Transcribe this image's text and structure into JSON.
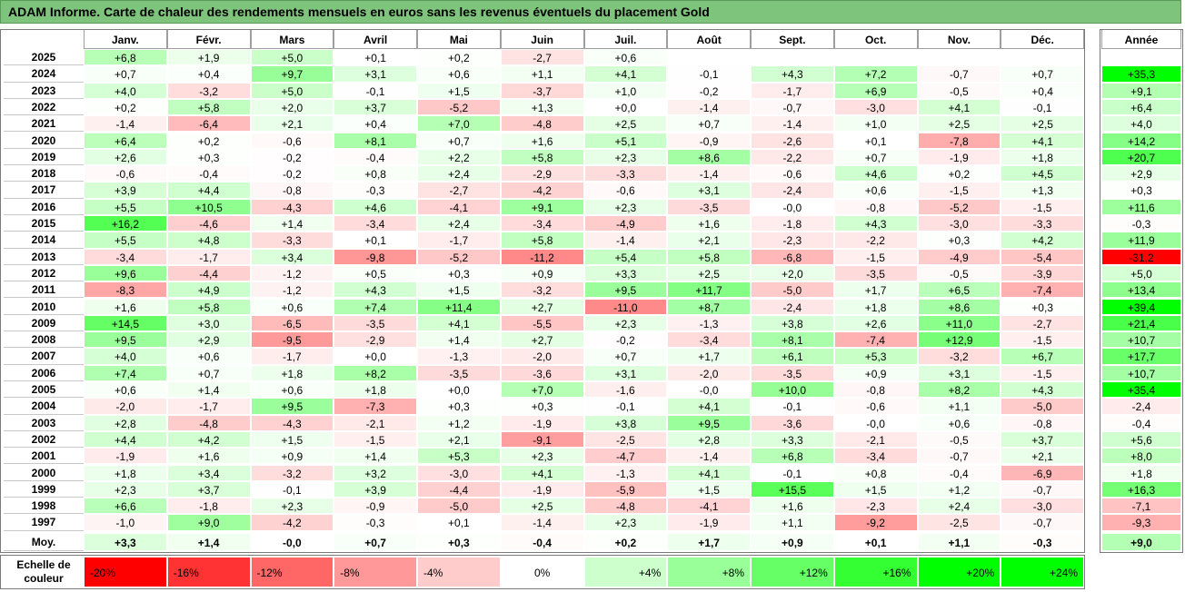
{
  "title": "ADAM Informe. Carte de chaleur des rendements mensuels en euros sans les revenus éventuels du placement Gold",
  "chart_data": {
    "type": "heatmap",
    "title": "ADAM Informe. Carte de chaleur des rendements mensuels en euros sans les revenus éventuels du placement Gold",
    "months": [
      "Janv.",
      "Févr.",
      "Mars",
      "Avril",
      "Mai",
      "Juin",
      "Juil.",
      "Août",
      "Sept.",
      "Oct.",
      "Nov.",
      "Déc."
    ],
    "year_header": "Année",
    "rows": [
      {
        "year": "2025",
        "values": [
          "+6,8",
          "+1,9",
          "+5,0",
          "+0,1",
          "+0,2",
          "-2,7",
          "+0,6",
          "",
          "",
          "",
          "",
          ""
        ],
        "annual": ""
      },
      {
        "year": "2024",
        "values": [
          "+0,7",
          "+0,4",
          "+9,7",
          "+3,1",
          "+0,6",
          "+1,1",
          "+4,1",
          "-0,1",
          "+4,3",
          "+7,2",
          "-0,7",
          "+0,7"
        ],
        "annual": "+35,3"
      },
      {
        "year": "2023",
        "values": [
          "+4,0",
          "-3,2",
          "+5,0",
          "-0,1",
          "+1,5",
          "-3,7",
          "+1,0",
          "-0,2",
          "-1,7",
          "+6,9",
          "-0,5",
          "+0,4"
        ],
        "annual": "+9,1"
      },
      {
        "year": "2022",
        "values": [
          "+0,2",
          "+5,8",
          "+2,0",
          "+3,7",
          "-5,2",
          "+1,3",
          "+0,0",
          "-1,4",
          "-0,7",
          "-3,0",
          "+4,1",
          "-0,1"
        ],
        "annual": "+6,4"
      },
      {
        "year": "2021",
        "values": [
          "-1,4",
          "-6,4",
          "+2,1",
          "+0,4",
          "+7,0",
          "-4,8",
          "+2,5",
          "+0,7",
          "-1,4",
          "+1,0",
          "+2,5",
          "+2,5"
        ],
        "annual": "+4,0"
      },
      {
        "year": "2020",
        "values": [
          "+6,4",
          "+0,2",
          "-0,6",
          "+8,1",
          "+0,7",
          "+1,6",
          "+5,1",
          "-0,9",
          "-2,6",
          "+0,1",
          "-7,8",
          "+4,1"
        ],
        "annual": "+14,2"
      },
      {
        "year": "2019",
        "values": [
          "+2,6",
          "+0,3",
          "-0,2",
          "-0,4",
          "+2,2",
          "+5,8",
          "+2,3",
          "+8,6",
          "-2,2",
          "+0,7",
          "-1,9",
          "+1,8"
        ],
        "annual": "+20,7"
      },
      {
        "year": "2018",
        "values": [
          "-0,6",
          "-0,4",
          "-0,2",
          "+0,8",
          "+2,4",
          "-2,9",
          "-3,3",
          "-1,4",
          "-0,6",
          "+4,6",
          "+0,2",
          "+4,5"
        ],
        "annual": "+2,9"
      },
      {
        "year": "2017",
        "values": [
          "+3,9",
          "+4,4",
          "-0,8",
          "-0,3",
          "-2,7",
          "-4,2",
          "-0,6",
          "+3,1",
          "-2,4",
          "+0,6",
          "-1,5",
          "+1,3"
        ],
        "annual": "+0,3"
      },
      {
        "year": "2016",
        "values": [
          "+5,5",
          "+10,5",
          "-4,3",
          "+4,6",
          "-4,1",
          "+9,1",
          "+2,3",
          "-3,5",
          "-0,0",
          "-0,8",
          "-5,2",
          "-1,5"
        ],
        "annual": "+11,6"
      },
      {
        "year": "2015",
        "values": [
          "+16,2",
          "-4,6",
          "+1,4",
          "-3,4",
          "+2,4",
          "-3,4",
          "-4,9",
          "+1,6",
          "-1,8",
          "+4,3",
          "-3,0",
          "-3,3"
        ],
        "annual": "-0,3"
      },
      {
        "year": "2014",
        "values": [
          "+5,5",
          "+4,8",
          "-3,3",
          "+0,1",
          "-1,7",
          "+5,8",
          "-1,4",
          "+2,1",
          "-2,3",
          "-2,2",
          "+0,3",
          "+4,2"
        ],
        "annual": "+11,9"
      },
      {
        "year": "2013",
        "values": [
          "-3,4",
          "-1,7",
          "+3,4",
          "-9,8",
          "-5,2",
          "-11,2",
          "+5,4",
          "+5,8",
          "-6,8",
          "-1,5",
          "-4,9",
          "-5,4"
        ],
        "annual": "-31,2"
      },
      {
        "year": "2012",
        "values": [
          "+9,6",
          "-4,4",
          "-1,2",
          "+0,5",
          "+0,3",
          "+0,9",
          "+3,3",
          "+2,5",
          "+2,0",
          "-3,5",
          "-0,5",
          "-3,9"
        ],
        "annual": "+5,0"
      },
      {
        "year": "2011",
        "values": [
          "-8,3",
          "+4,9",
          "-1,2",
          "+4,3",
          "+1,5",
          "-3,2",
          "+9,5",
          "+11,7",
          "-5,0",
          "+1,7",
          "+6,5",
          "-7,4"
        ],
        "annual": "+13,4"
      },
      {
        "year": "2010",
        "values": [
          "+1,6",
          "+5,8",
          "+0,6",
          "+7,4",
          "+11,4",
          "+2,7",
          "-11,0",
          "+8,7",
          "-2,4",
          "+1,8",
          "+8,6",
          "+0,3"
        ],
        "annual": "+39,4"
      },
      {
        "year": "2009",
        "values": [
          "+14,5",
          "+3,0",
          "-6,5",
          "-3,5",
          "+4,1",
          "-5,5",
          "+2,3",
          "-1,3",
          "+3,8",
          "+2,6",
          "+11,0",
          "-2,7"
        ],
        "annual": "+21,4"
      },
      {
        "year": "2008",
        "values": [
          "+9,5",
          "+2,9",
          "-9,5",
          "-2,9",
          "+1,4",
          "+2,7",
          "-0,2",
          "-3,4",
          "+8,1",
          "-7,4",
          "+12,9",
          "-1,5"
        ],
        "annual": "+10,7"
      },
      {
        "year": "2007",
        "values": [
          "+4,0",
          "+0,6",
          "-1,7",
          "+0,0",
          "-1,3",
          "-2,0",
          "+0,7",
          "+1,7",
          "+6,1",
          "+5,3",
          "-3,2",
          "+6,7"
        ],
        "annual": "+17,7"
      },
      {
        "year": "2006",
        "values": [
          "+7,4",
          "+0,7",
          "+1,8",
          "+8,2",
          "-3,5",
          "-3,6",
          "+3,1",
          "-2,0",
          "-3,5",
          "+0,9",
          "+3,1",
          "-1,5"
        ],
        "annual": "+10,7"
      },
      {
        "year": "2005",
        "values": [
          "+0,6",
          "+1,4",
          "+0,6",
          "+1,8",
          "+0,0",
          "+7,0",
          "-1,6",
          "-0,0",
          "+10,0",
          "-0,8",
          "+8,2",
          "+4,3"
        ],
        "annual": "+35,4"
      },
      {
        "year": "2004",
        "values": [
          "-2,0",
          "-1,7",
          "+9,5",
          "-7,3",
          "+0,3",
          "+0,3",
          "-0,1",
          "+4,1",
          "-0,1",
          "-0,6",
          "+1,1",
          "-5,0"
        ],
        "annual": "-2,4"
      },
      {
        "year": "2003",
        "values": [
          "+2,8",
          "-4,8",
          "-4,3",
          "-2,1",
          "+1,2",
          "-1,9",
          "+3,8",
          "+9,5",
          "-3,6",
          "-0,0",
          "+0,6",
          "-0,8"
        ],
        "annual": "-0,4"
      },
      {
        "year": "2002",
        "values": [
          "+4,4",
          "+4,2",
          "+1,5",
          "-1,5",
          "+2,1",
          "-9,1",
          "-2,5",
          "+2,8",
          "+3,3",
          "-2,1",
          "-0,5",
          "+3,7"
        ],
        "annual": "+5,6"
      },
      {
        "year": "2001",
        "values": [
          "-1,9",
          "+1,6",
          "+0,9",
          "+1,4",
          "+5,3",
          "+2,3",
          "-4,7",
          "-1,4",
          "+6,8",
          "-3,4",
          "-0,7",
          "+2,1"
        ],
        "annual": "+8,0"
      },
      {
        "year": "2000",
        "values": [
          "+1,8",
          "+3,4",
          "-3,2",
          "+3,2",
          "-3,0",
          "+4,1",
          "-1,3",
          "+4,1",
          "-0,1",
          "+0,8",
          "-0,4",
          "-6,9"
        ],
        "annual": "+1,8"
      },
      {
        "year": "1999",
        "values": [
          "+2,3",
          "+3,7",
          "-0,1",
          "+3,9",
          "-4,4",
          "-1,9",
          "-5,9",
          "+1,5",
          "+15,5",
          "+1,5",
          "+1,2",
          "-0,7"
        ],
        "annual": "+16,3"
      },
      {
        "year": "1998",
        "values": [
          "+6,6",
          "-1,8",
          "+2,3",
          "-0,9",
          "-5,0",
          "+2,5",
          "-4,8",
          "-4,1",
          "+1,6",
          "-2,3",
          "+2,4",
          "-3,0"
        ],
        "annual": "-7,1"
      },
      {
        "year": "1997",
        "values": [
          "-1,0",
          "+9,0",
          "-4,2",
          "-0,3",
          "+0,1",
          "-1,4",
          "+2,3",
          "-1,9",
          "+1,1",
          "-9,2",
          "-2,5",
          "-0,7"
        ],
        "annual": "-9,3"
      }
    ],
    "average": {
      "label": "Moy.",
      "values": [
        "+3,3",
        "+1,4",
        "-0,0",
        "+0,7",
        "+0,3",
        "-0,4",
        "+0,2",
        "+1,7",
        "+0,9",
        "+0,1",
        "+1,1",
        "-0,3"
      ],
      "annual": "+9,0"
    },
    "scale": {
      "label_line1": "Echelle de",
      "label_line2": "couleur",
      "steps": [
        "-20%",
        "-16%",
        "-12%",
        "-8%",
        "-4%",
        "0%",
        "+4%",
        "+8%",
        "+12%",
        "+16%",
        "+20%",
        "+24%"
      ],
      "step_values": [
        -20,
        -16,
        -12,
        -8,
        -4,
        0,
        4,
        8,
        12,
        16,
        20,
        24
      ]
    },
    "colors": {
      "negative": "#ff0000",
      "neutral": "#ffffff",
      "positive": "#00ff00"
    }
  }
}
